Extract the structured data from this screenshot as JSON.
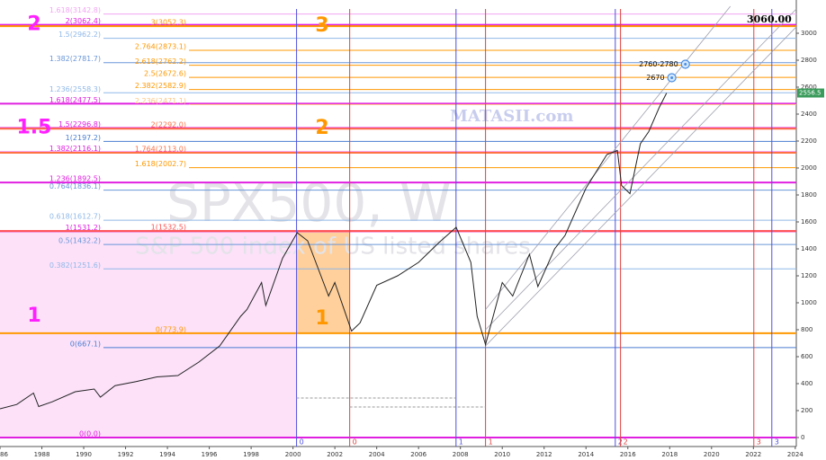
{
  "chart_data": {
    "type": "line",
    "watermark": "SPX500, W",
    "watermark_subtitle": "S&P 500 index of US listed shares",
    "site": "MATASII.com",
    "last_price": 2556.5,
    "last_price_label": "2556.5",
    "target": "3060.00",
    "color": "#222222",
    "x": [
      1986,
      1986.8,
      1987.6,
      1987.85,
      1988.5,
      1989.6,
      1990.5,
      1990.8,
      1991.5,
      1992.5,
      1993.5,
      1994.5,
      1995.5,
      1996.5,
      1997.5,
      1997.8,
      1998.5,
      1998.7,
      1999.5,
      2000.2,
      2000.7,
      2001.7,
      2002.0,
      2002.8,
      2003.2,
      2004.0,
      2005.0,
      2006.0,
      2007.0,
      2007.8,
      2008.5,
      2008.8,
      2009.2,
      2010.0,
      2010.5,
      2011.3,
      2011.7,
      2012.5,
      2013.0,
      2014.0,
      2015.0,
      2015.5,
      2015.7,
      2016.1,
      2016.6,
      2017.0,
      2017.5,
      2017.85
    ],
    "values": [
      213,
      245,
      330,
      230,
      265,
      340,
      360,
      300,
      385,
      415,
      450,
      460,
      560,
      680,
      900,
      950,
      1150,
      980,
      1330,
      1520,
      1460,
      1050,
      1150,
      790,
      850,
      1130,
      1200,
      1300,
      1450,
      1560,
      1300,
      900,
      690,
      1150,
      1050,
      1360,
      1120,
      1400,
      1500,
      1850,
      2100,
      2130,
      1870,
      1810,
      2180,
      2270,
      2450,
      2556
    ],
    "xlim": [
      1986,
      2024.05
    ],
    "ylim": [
      -66.7,
      3246.7
    ],
    "xticks": [
      1986,
      1988,
      1990,
      1992,
      1994,
      1996,
      1998,
      2000,
      2002,
      2004,
      2006,
      2008,
      2010,
      2012,
      2014,
      2016,
      2018,
      2020,
      2022,
      2024
    ],
    "yticks": [
      0,
      200,
      400,
      600,
      800,
      1000,
      1200,
      1400,
      1600,
      1800,
      2000,
      2200,
      2400,
      2600,
      2800,
      3000
    ],
    "levels_left": [
      {
        "label": "1.618(3142.8)",
        "value": 3142.8,
        "color": "#f2a6f2",
        "bold": false
      },
      {
        "label": "2(3062.4)",
        "value": 3062.4,
        "color": "#e020e0",
        "bold": true
      },
      {
        "label": "1.5(2962.2)",
        "value": 2962.2,
        "color": "#90b8e8",
        "bold": false
      },
      {
        "label": "1.382(2781.7)",
        "value": 2781.7,
        "color": "#6a96d8",
        "bold": false
      },
      {
        "label": "1.236(2558.3)",
        "value": 2558.3,
        "color": "#90b8e8",
        "bold": false
      },
      {
        "label": "1.618(2477.5)",
        "value": 2477.5,
        "color": "#e020e0",
        "bold": true
      },
      {
        "label": "1.5(2296.8)",
        "value": 2296.8,
        "color": "#e020e0",
        "bold": true
      },
      {
        "label": "1(2197.2)",
        "value": 2197.2,
        "color": "#4a7ed0",
        "bold": false
      },
      {
        "label": "1.382(2116.1)",
        "value": 2116.1,
        "color": "#e020e0",
        "bold": true
      },
      {
        "label": "1.236(1892.5)",
        "value": 1892.5,
        "color": "#e020e0",
        "bold": true
      },
      {
        "label": "0.764(1836.1)",
        "value": 1836.1,
        "color": "#6a96d8",
        "bold": false
      },
      {
        "label": "0.618(1612.7)",
        "value": 1612.7,
        "color": "#90b8e8",
        "bold": false
      },
      {
        "label": "1(1531.2)",
        "value": 1531.2,
        "color": "#e020e0",
        "bold": true
      },
      {
        "label": "0.5(1432.2)",
        "value": 1432.2,
        "color": "#6a96d8",
        "bold": false
      },
      {
        "label": "0.382(1251.6)",
        "value": 1251.6,
        "color": "#90b8e8",
        "bold": false
      },
      {
        "label": "0(667.1)",
        "value": 667.1,
        "color": "#4a7ed0",
        "bold": false
      },
      {
        "label": "0(0.0)",
        "value": 0.0,
        "color": "#e020e0",
        "bold": true
      }
    ],
    "levels_right": [
      {
        "label": "3(3052.3)",
        "value": 3052.3,
        "color": "#ff9800",
        "bold": true
      },
      {
        "label": "2.764(2873.1)",
        "value": 2873.1,
        "color": "#ff9800",
        "bold": false
      },
      {
        "label": "2.618(2762.2)",
        "value": 2762.2,
        "color": "#ff9800",
        "bold": false
      },
      {
        "label": "2.5(2672.6)",
        "value": 2672.6,
        "color": "#ff9800",
        "bold": false
      },
      {
        "label": "2.382(2582.9)",
        "value": 2582.9,
        "color": "#ff9800",
        "bold": false
      },
      {
        "label": "2.236(2471.1)",
        "value": 2471.1,
        "color": "#ffc680",
        "bold": false
      },
      {
        "label": "2(2292.0)",
        "value": 2292.0,
        "color": "#ff7043",
        "bold": true
      },
      {
        "label": "1.764(2113.0)",
        "value": 2113.0,
        "color": "#ff7043",
        "bold": true
      },
      {
        "label": "1.618(2002.7)",
        "value": 2002.7,
        "color": "#ff9800",
        "bold": false
      },
      {
        "label": "1(1532.5)",
        "value": 1532.5,
        "color": "#ff5050",
        "bold": true
      },
      {
        "label": "0(773.9)",
        "value": 773.9,
        "color": "#ff9800",
        "bold": true
      }
    ],
    "verticals": [
      {
        "x": 2000.17,
        "label": "0",
        "color": "#5050e0"
      },
      {
        "x": 2002.71,
        "label": "0",
        "color": "#e04040"
      },
      {
        "x": 2007.79,
        "label": "1",
        "color": "#5050e0"
      },
      {
        "x": 2009.2,
        "label": "1",
        "color": "#e04040"
      },
      {
        "x": 2015.4,
        "label": "2",
        "color": "#5050e0"
      },
      {
        "x": 2015.65,
        "label": "2",
        "color": "#e04040"
      },
      {
        "x": 2022.02,
        "label": "3",
        "color": "#e04040"
      },
      {
        "x": 2022.88,
        "label": "3",
        "color": "#5050e0"
      }
    ],
    "trendlines": [
      {
        "x": [
          2009.2,
          2024.05
        ],
        "values": [
          680,
          3047
        ]
      },
      {
        "x": [
          2009.2,
          2020.9
        ],
        "values": [
          950,
          3200
        ]
      },
      {
        "x": [
          2009.2,
          2024.05
        ],
        "values": [
          800,
          3180
        ]
      }
    ],
    "dashed_ranges": [
      {
        "x": [
          2000.17,
          2007.79
        ],
        "value": 293
      },
      {
        "x": [
          2002.71,
          2009.2
        ],
        "value": 227
      }
    ],
    "waves_magenta": [
      {
        "label": "2",
        "value": 3062.4
      },
      {
        "label": "1.5",
        "value": 2296.8
      },
      {
        "label": "1",
        "value": 900
      }
    ],
    "waves_orange": [
      {
        "label": "3",
        "value": 3052.3
      },
      {
        "label": "2",
        "value": 2292.0
      },
      {
        "label": "1",
        "value": 880
      }
    ],
    "targets": [
      {
        "label": "2760-2780",
        "x": 2018.75,
        "value": 2770
      },
      {
        "label": "2670",
        "x": 2018.1,
        "value": 2670
      }
    ]
  }
}
